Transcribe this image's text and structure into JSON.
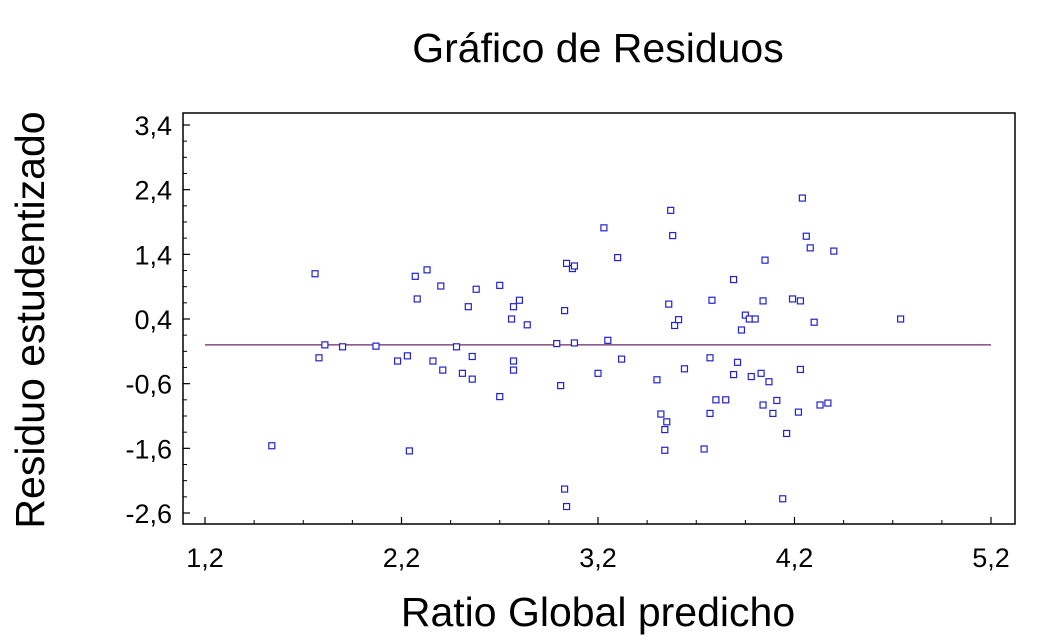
{
  "chart_data": {
    "type": "scatter",
    "title": "Gráfico de Residuos",
    "xlabel": "Ratio Global predicho",
    "ylabel": "Residuo estudentizado",
    "xlim": [
      1.2,
      5.2
    ],
    "ylim": [
      -2.6,
      3.4
    ],
    "x_ticks": [
      "1,2",
      "2,2",
      "3,2",
      "4,2",
      "5,2"
    ],
    "y_ticks": [
      "3,4",
      "2,4",
      "1,4",
      "0,4",
      "-0,6",
      "-1,6",
      "-2,6"
    ],
    "reference_line_y": 0,
    "grid": false,
    "colors": {
      "points": "#2222cc",
      "reference_line": "#6a2a6a",
      "frame": "#000000"
    },
    "points": [
      [
        1.54,
        -1.56
      ],
      [
        1.76,
        1.1
      ],
      [
        1.78,
        -0.2
      ],
      [
        1.81,
        0.0
      ],
      [
        1.9,
        -0.03
      ],
      [
        2.07,
        -0.02
      ],
      [
        2.18,
        -0.25
      ],
      [
        2.23,
        -0.17
      ],
      [
        2.24,
        -1.64
      ],
      [
        2.27,
        1.06
      ],
      [
        2.28,
        0.71
      ],
      [
        2.33,
        1.16
      ],
      [
        2.36,
        -0.25
      ],
      [
        2.4,
        0.91
      ],
      [
        2.41,
        -0.39
      ],
      [
        2.48,
        -0.03
      ],
      [
        2.51,
        -0.44
      ],
      [
        2.54,
        0.59
      ],
      [
        2.56,
        -0.18
      ],
      [
        2.56,
        -0.53
      ],
      [
        2.58,
        0.86
      ],
      [
        2.7,
        -0.8
      ],
      [
        2.7,
        0.92
      ],
      [
        2.76,
        0.4
      ],
      [
        2.77,
        0.59
      ],
      [
        2.77,
        -0.25
      ],
      [
        2.77,
        -0.39
      ],
      [
        2.8,
        0.69
      ],
      [
        2.84,
        0.31
      ],
      [
        2.99,
        0.02
      ],
      [
        3.01,
        -0.63
      ],
      [
        3.03,
        -2.23
      ],
      [
        3.04,
        -2.5
      ],
      [
        3.03,
        0.53
      ],
      [
        3.04,
        1.26
      ],
      [
        3.07,
        1.18
      ],
      [
        3.08,
        1.22
      ],
      [
        3.08,
        0.03
      ],
      [
        3.2,
        -0.44
      ],
      [
        3.23,
        1.81
      ],
      [
        3.25,
        0.07
      ],
      [
        3.3,
        1.35
      ],
      [
        3.32,
        -0.22
      ],
      [
        3.5,
        -0.54
      ],
      [
        3.52,
        -1.07
      ],
      [
        3.54,
        -1.63
      ],
      [
        3.54,
        -1.31
      ],
      [
        3.55,
        -1.19
      ],
      [
        3.56,
        0.63
      ],
      [
        3.57,
        2.08
      ],
      [
        3.58,
        1.69
      ],
      [
        3.59,
        0.3
      ],
      [
        3.61,
        0.39
      ],
      [
        3.64,
        -0.37
      ],
      [
        3.74,
        -1.61
      ],
      [
        3.77,
        -0.2
      ],
      [
        3.77,
        -1.06
      ],
      [
        3.78,
        0.69
      ],
      [
        3.8,
        -0.85
      ],
      [
        3.85,
        -0.85
      ],
      [
        3.89,
        -0.46
      ],
      [
        3.89,
        1.01
      ],
      [
        3.91,
        -0.27
      ],
      [
        3.93,
        0.23
      ],
      [
        3.95,
        0.46
      ],
      [
        3.97,
        0.4
      ],
      [
        3.98,
        -0.49
      ],
      [
        4.0,
        0.4
      ],
      [
        4.03,
        -0.44
      ],
      [
        4.04,
        0.68
      ],
      [
        4.04,
        -0.93
      ],
      [
        4.05,
        1.31
      ],
      [
        4.07,
        -0.57
      ],
      [
        4.09,
        -1.06
      ],
      [
        4.11,
        -0.86
      ],
      [
        4.14,
        -2.38
      ],
      [
        4.16,
        -1.37
      ],
      [
        4.19,
        0.71
      ],
      [
        4.22,
        -1.04
      ],
      [
        4.23,
        -0.38
      ],
      [
        4.23,
        0.68
      ],
      [
        4.24,
        2.27
      ],
      [
        4.26,
        1.68
      ],
      [
        4.28,
        1.5
      ],
      [
        4.3,
        0.35
      ],
      [
        4.33,
        -0.93
      ],
      [
        4.37,
        -0.9
      ],
      [
        4.4,
        1.45
      ],
      [
        4.74,
        0.4
      ]
    ]
  }
}
